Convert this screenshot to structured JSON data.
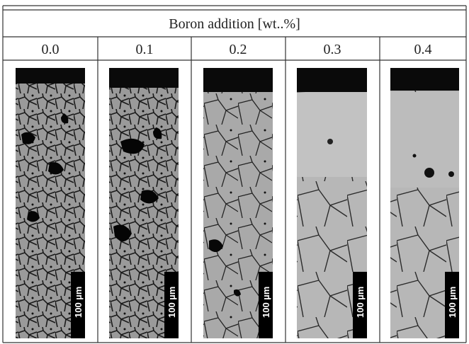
{
  "table": {
    "header": "Boron addition  [wt..%]",
    "columns": [
      "0.0",
      "0.1",
      "0.2",
      "0.3",
      "0.4"
    ],
    "scale_bars": [
      "100 µm",
      "100 µm",
      "100 µm",
      "100 µm",
      "100 µm"
    ]
  }
}
